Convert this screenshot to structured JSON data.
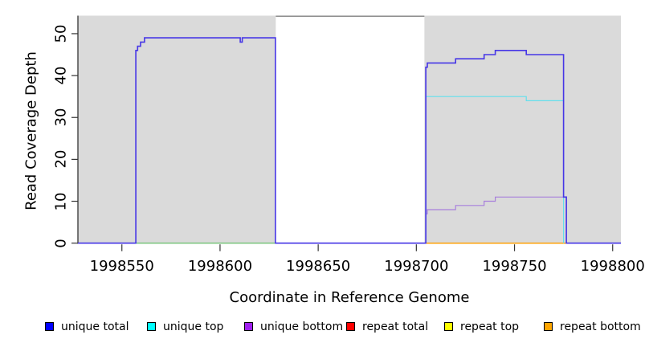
{
  "chart_data": {
    "type": "line",
    "title": "",
    "xlabel": "Coordinate in Reference Genome",
    "ylabel": "Read Coverage Depth",
    "xlim": [
      1998527.6,
      1998804.2
    ],
    "ylim": [
      0,
      54.3
    ],
    "xticks": [
      1998550,
      1998600,
      1998650,
      1998700,
      1998750,
      1998800
    ],
    "yticks": [
      0,
      10,
      20,
      30,
      40,
      50
    ],
    "grid": false,
    "background_shading": {
      "color": "#DADADA",
      "regions": [
        [
          1998527.6,
          1998628.4
        ],
        [
          1998704.1,
          1998804.2
        ]
      ],
      "gap_top_border": {
        "x0": 1998628.4,
        "x1": 1998704.1,
        "color": "#7F7F7F"
      }
    },
    "axis_line_color": "#333333",
    "series": [
      {
        "label": "",
        "note": "unlabeled green baseline at zero under left plateau",
        "line_color": "#74C476",
        "width": 1.3,
        "points": [
          [
            1998557.1,
            0
          ],
          [
            1998628.2,
            0
          ]
        ]
      },
      {
        "label": "repeat total",
        "line_color": "#FF0000",
        "width": 1.2,
        "points": []
      },
      {
        "label": "repeat top",
        "line_color": "#FFFF00",
        "width": 1.2,
        "points": []
      },
      {
        "label": "repeat bottom",
        "line_color": "#FFA007",
        "width": 1.5,
        "points": [
          [
            1998704.8,
            0
          ],
          [
            1998776.4,
            0
          ]
        ]
      },
      {
        "label": "unique top",
        "line_color": "#63DFEC",
        "width": 1.2,
        "points": [
          [
            1998704.8,
            0
          ],
          [
            1998704.8,
            35
          ],
          [
            1998756.0,
            35
          ],
          [
            1998756.0,
            34
          ],
          [
            1998775.0,
            34
          ],
          [
            1998775.0,
            0
          ]
        ]
      },
      {
        "label": "unique bottom",
        "line_color": "#A77FDC",
        "width": 1.2,
        "points": [
          [
            1998704.8,
            0
          ],
          [
            1998704.8,
            7
          ],
          [
            1998705.6,
            7
          ],
          [
            1998705.6,
            8
          ],
          [
            1998720.0,
            8
          ],
          [
            1998720.0,
            9
          ],
          [
            1998734.5,
            9
          ],
          [
            1998734.5,
            10
          ],
          [
            1998740.2,
            10
          ],
          [
            1998740.2,
            11
          ],
          [
            1998776.4,
            11
          ],
          [
            1998776.4,
            0
          ]
        ]
      },
      {
        "label": "unique total",
        "line_color": "#4636E6",
        "width": 1.6,
        "points": [
          [
            1998527.6,
            0
          ],
          [
            1998557.1,
            0
          ],
          [
            1998557.1,
            46
          ],
          [
            1998558.0,
            46
          ],
          [
            1998558.0,
            47
          ],
          [
            1998559.5,
            47
          ],
          [
            1998559.5,
            48
          ],
          [
            1998561.5,
            48
          ],
          [
            1998561.5,
            49
          ],
          [
            1998610.3,
            49
          ],
          [
            1998610.3,
            48
          ],
          [
            1998611.3,
            48
          ],
          [
            1998611.3,
            49
          ],
          [
            1998628.2,
            49
          ],
          [
            1998628.2,
            0
          ],
          [
            1998704.8,
            0
          ],
          [
            1998704.8,
            42
          ],
          [
            1998705.6,
            42
          ],
          [
            1998705.6,
            43
          ],
          [
            1998720.0,
            43
          ],
          [
            1998720.0,
            44
          ],
          [
            1998734.5,
            44
          ],
          [
            1998734.5,
            45
          ],
          [
            1998740.2,
            45
          ],
          [
            1998740.2,
            46
          ],
          [
            1998756.0,
            46
          ],
          [
            1998756.0,
            45
          ],
          [
            1998775.0,
            45
          ],
          [
            1998775.0,
            11
          ],
          [
            1998776.4,
            11
          ],
          [
            1998776.4,
            0
          ],
          [
            1998804.2,
            0
          ]
        ]
      }
    ],
    "legend": [
      {
        "label": "unique total",
        "color": "#0000FF"
      },
      {
        "label": "unique top",
        "color": "#00FFFF"
      },
      {
        "label": "unique bottom",
        "color": "#A020F0"
      },
      {
        "label": "repeat total",
        "color": "#FF0000"
      },
      {
        "label": "repeat top",
        "color": "#FFFF00"
      },
      {
        "label": "repeat bottom",
        "color": "#FFA500"
      }
    ],
    "legend_position": "bottom"
  }
}
